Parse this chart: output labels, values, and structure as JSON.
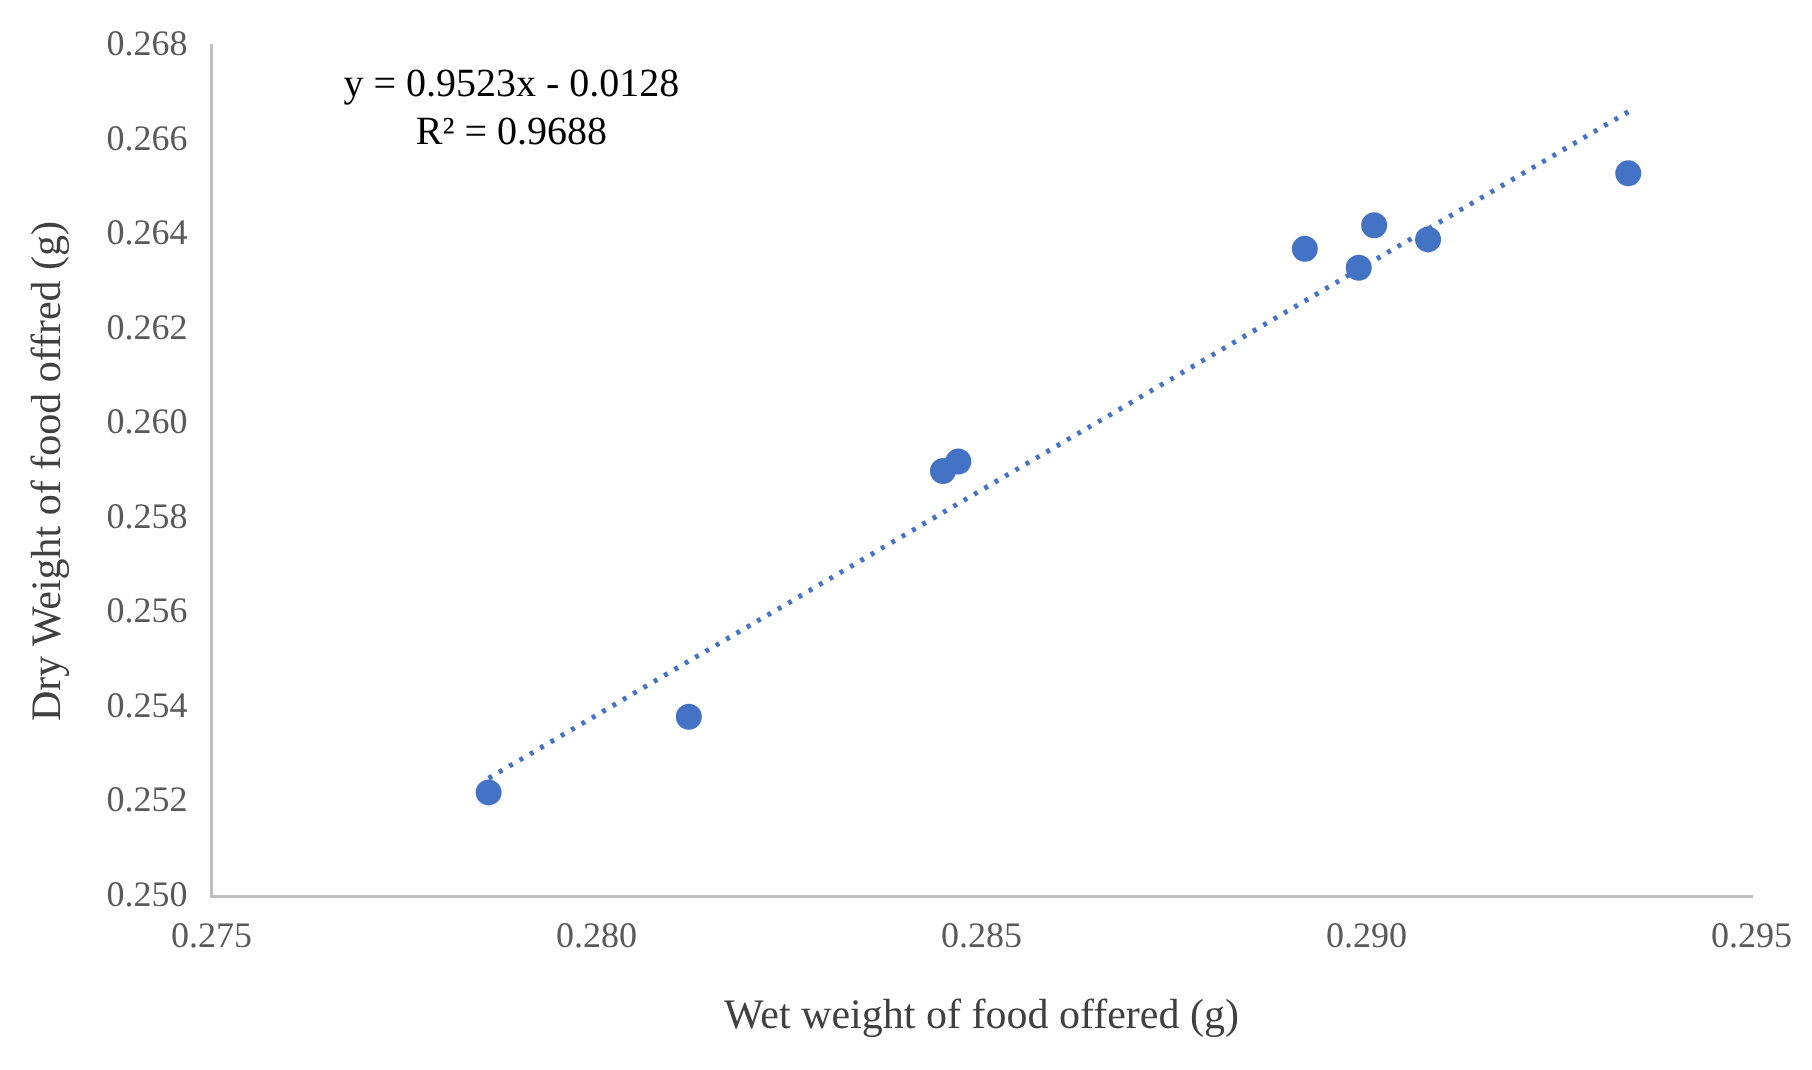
{
  "chart_data": {
    "type": "scatter",
    "xlabel": "Wet weight of food offered (g)",
    "ylabel": "Dry Weight of food offred (g)",
    "xlim": [
      0.275,
      0.295
    ],
    "xticks": [
      {
        "value": 0.275,
        "label": "0.275"
      },
      {
        "value": 0.28,
        "label": "0.280"
      },
      {
        "value": 0.285,
        "label": "0.285"
      },
      {
        "value": 0.29,
        "label": "0.290"
      },
      {
        "value": 0.295,
        "label": "0.295"
      }
    ],
    "ylim": [
      0.25,
      0.268
    ],
    "yticks": [
      {
        "value": 0.25,
        "label": "0.250"
      },
      {
        "value": 0.252,
        "label": "0.252"
      },
      {
        "value": 0.254,
        "label": "0.254"
      },
      {
        "value": 0.256,
        "label": "0.256"
      },
      {
        "value": 0.258,
        "label": "0.258"
      },
      {
        "value": 0.26,
        "label": "0.260"
      },
      {
        "value": 0.262,
        "label": "0.262"
      },
      {
        "value": 0.264,
        "label": "0.264"
      },
      {
        "value": 0.266,
        "label": "0.266"
      },
      {
        "value": 0.268,
        "label": "0.268"
      }
    ],
    "grid": false,
    "legend": false,
    "marker": "circle",
    "series": [
      {
        "color": "#4472c4",
        "x": [
          0.2786,
          0.2812,
          0.2845,
          0.2847,
          0.2892,
          0.2899,
          0.2901,
          0.2908,
          0.2934
        ],
        "values": [
          0.2522,
          0.2538,
          0.259,
          0.2592,
          0.2637,
          0.2633,
          0.2642,
          0.2639,
          0.2653
        ]
      },
      {
        "type": "line",
        "color": "#4472c4",
        "line_style": "dotted",
        "marker": "none",
        "x": [
          0.2786,
          0.2934
        ],
        "values": [
          0.2525,
          0.2666
        ]
      }
    ],
    "annotations": [
      "y = 0.9523x - 0.0128",
      "R² = 0.9688"
    ]
  }
}
